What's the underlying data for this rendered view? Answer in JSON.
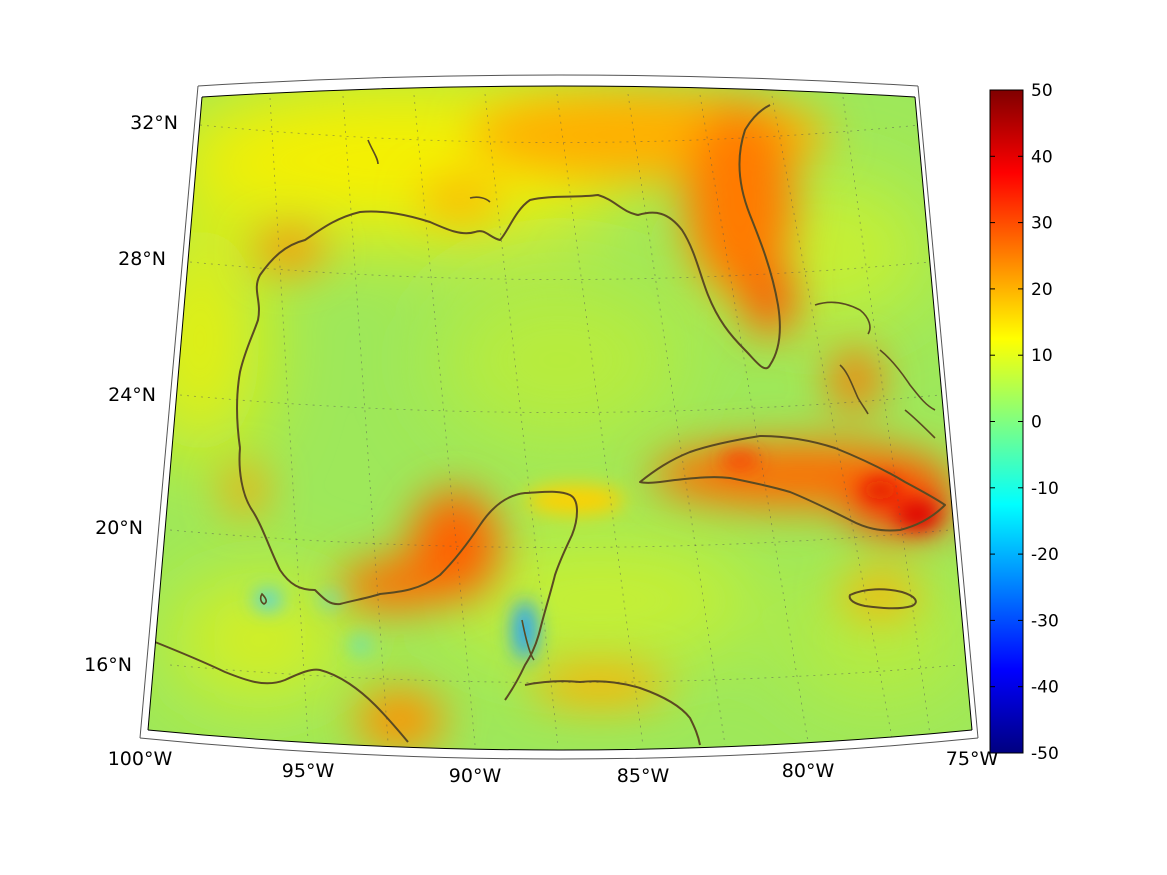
{
  "map": {
    "projection": "conic",
    "lon_labels": [
      "100°W",
      "95°W",
      "90°W",
      "85°W",
      "80°W",
      "75°W"
    ],
    "lat_labels": [
      "16°N",
      "20°N",
      "24°N",
      "28°N",
      "32°N"
    ],
    "coastline_color": "#5a4a22",
    "grid_style": "dotted"
  },
  "colorbar": {
    "colormap": "jet",
    "min": -50,
    "max": 50,
    "ticks": [
      "50",
      "40",
      "30",
      "20",
      "10",
      "0",
      "-10",
      "-20",
      "-30",
      "-40",
      "-50"
    ]
  },
  "colors": {
    "field_background": "#9ee85a",
    "high": "#ff3a00",
    "low": "#00c8ff"
  }
}
